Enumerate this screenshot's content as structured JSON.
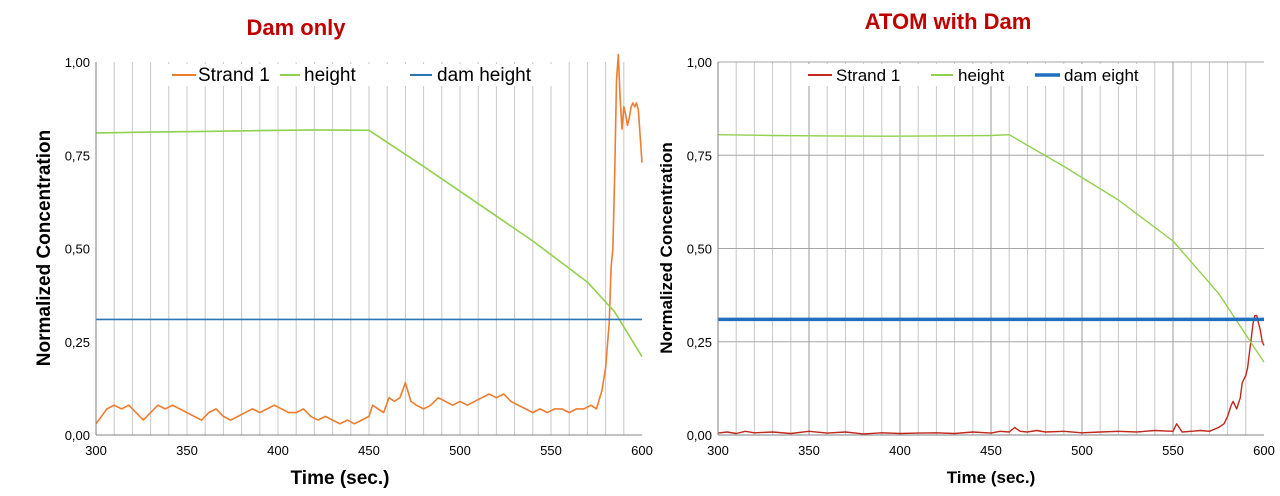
{
  "chart_data": [
    {
      "type": "line",
      "title": "Dam only",
      "xlabel": "Time (sec.)",
      "ylabel": "Normalized Concentration",
      "xlim": [
        300,
        600
      ],
      "ylim": [
        0,
        1
      ],
      "xticks": [
        "300",
        "350",
        "400",
        "450",
        "500",
        "550",
        "600"
      ],
      "yticks": [
        "0,00",
        "0,25",
        "0,50",
        "0,75",
        "1,00"
      ],
      "legend": "top",
      "grid": "vertical",
      "series": [
        {
          "name": "Strand 1",
          "color": "#ed7d31",
          "x": [
            300,
            303,
            306,
            310,
            314,
            318,
            322,
            326,
            330,
            334,
            338,
            342,
            346,
            350,
            354,
            358,
            362,
            366,
            370,
            374,
            378,
            382,
            386,
            390,
            394,
            398,
            402,
            406,
            410,
            414,
            418,
            422,
            426,
            430,
            434,
            438,
            442,
            446,
            450,
            452,
            455,
            458,
            461,
            464,
            467,
            470,
            473,
            476,
            480,
            484,
            488,
            492,
            496,
            500,
            504,
            508,
            512,
            516,
            520,
            524,
            528,
            532,
            536,
            540,
            544,
            548,
            552,
            556,
            560,
            564,
            568,
            572,
            575,
            578,
            580,
            582,
            583,
            584,
            585,
            586,
            587,
            588,
            589,
            590,
            591,
            592,
            593,
            594,
            595,
            596,
            597,
            598,
            599,
            600
          ],
          "y": [
            0.03,
            0.05,
            0.07,
            0.08,
            0.07,
            0.08,
            0.06,
            0.04,
            0.06,
            0.08,
            0.07,
            0.08,
            0.07,
            0.06,
            0.05,
            0.04,
            0.06,
            0.07,
            0.05,
            0.04,
            0.05,
            0.06,
            0.07,
            0.06,
            0.07,
            0.08,
            0.07,
            0.06,
            0.06,
            0.07,
            0.05,
            0.04,
            0.05,
            0.04,
            0.03,
            0.04,
            0.03,
            0.04,
            0.05,
            0.08,
            0.07,
            0.06,
            0.1,
            0.09,
            0.1,
            0.14,
            0.09,
            0.08,
            0.07,
            0.08,
            0.1,
            0.09,
            0.08,
            0.09,
            0.08,
            0.09,
            0.1,
            0.11,
            0.1,
            0.11,
            0.09,
            0.08,
            0.07,
            0.06,
            0.07,
            0.06,
            0.07,
            0.07,
            0.06,
            0.07,
            0.07,
            0.08,
            0.07,
            0.12,
            0.18,
            0.3,
            0.45,
            0.5,
            0.7,
            0.95,
            1.02,
            0.9,
            0.82,
            0.88,
            0.86,
            0.83,
            0.85,
            0.88,
            0.89,
            0.88,
            0.89,
            0.87,
            0.8,
            0.73
          ]
        },
        {
          "name": "height",
          "color": "#92d050",
          "x": [
            300,
            330,
            360,
            390,
            420,
            450,
            480,
            510,
            540,
            570,
            585,
            600
          ],
          "y": [
            0.81,
            0.812,
            0.814,
            0.816,
            0.818,
            0.817,
            0.72,
            0.62,
            0.52,
            0.41,
            0.33,
            0.21
          ]
        },
        {
          "name": "dam height",
          "color": "#2e75b6",
          "x": [
            300,
            600
          ],
          "y": [
            0.31,
            0.31
          ]
        }
      ]
    },
    {
      "type": "line",
      "title": "ATOM with Dam",
      "xlabel": "Time (sec.)",
      "ylabel": "Normalized Concentration",
      "xlim": [
        300,
        600
      ],
      "ylim": [
        0,
        1
      ],
      "xticks": [
        "300",
        "350",
        "400",
        "450",
        "500",
        "550",
        "600"
      ],
      "yticks": [
        "0,00",
        "0,25",
        "0,50",
        "0,75",
        "1,00"
      ],
      "legend": "top",
      "grid": "both",
      "series": [
        {
          "name": "Strand 1",
          "color": "#c0281c",
          "x": [
            300,
            305,
            310,
            315,
            320,
            330,
            340,
            350,
            360,
            370,
            380,
            390,
            400,
            410,
            420,
            430,
            440,
            450,
            455,
            460,
            463,
            466,
            470,
            475,
            480,
            490,
            500,
            510,
            520,
            530,
            540,
            550,
            552,
            555,
            560,
            565,
            570,
            575,
            578,
            580,
            582,
            583,
            585,
            587,
            588,
            590,
            591,
            592,
            593,
            594,
            595,
            596,
            597,
            598,
            599,
            600
          ],
          "y": [
            0.005,
            0.008,
            0.004,
            0.01,
            0.006,
            0.008,
            0.004,
            0.01,
            0.005,
            0.008,
            0.003,
            0.006,
            0.004,
            0.005,
            0.006,
            0.004,
            0.008,
            0.005,
            0.01,
            0.008,
            0.02,
            0.01,
            0.008,
            0.012,
            0.008,
            0.01,
            0.006,
            0.008,
            0.01,
            0.008,
            0.012,
            0.01,
            0.03,
            0.008,
            0.01,
            0.012,
            0.01,
            0.02,
            0.03,
            0.05,
            0.08,
            0.09,
            0.07,
            0.1,
            0.14,
            0.16,
            0.18,
            0.22,
            0.26,
            0.3,
            0.32,
            0.32,
            0.3,
            0.28,
            0.25,
            0.24
          ]
        },
        {
          "name": "height",
          "color": "#92d050",
          "x": [
            300,
            330,
            360,
            390,
            420,
            450,
            460,
            490,
            520,
            550,
            575,
            600
          ],
          "y": [
            0.805,
            0.803,
            0.802,
            0.801,
            0.802,
            0.803,
            0.805,
            0.72,
            0.63,
            0.52,
            0.38,
            0.195
          ]
        },
        {
          "name": "dam eight",
          "color": "#1f6fbf",
          "x": [
            300,
            600
          ],
          "y": [
            0.31,
            0.31
          ]
        }
      ]
    }
  ]
}
